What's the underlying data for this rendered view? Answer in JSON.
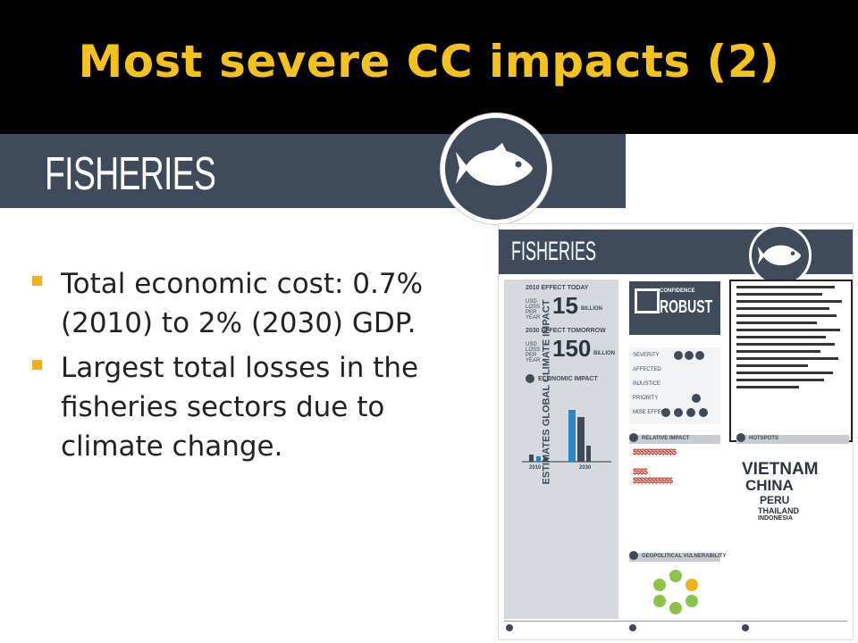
{
  "slide": {
    "title": "Most severe CC impacts (2)",
    "banner_label": "FISHERIES",
    "bullets": [
      "Total economic cost: 0.7% (2010) to 2% (2030) GDP.",
      "Largest total losses in the fisheries sectors due to climate change."
    ]
  },
  "infographic": {
    "header": "FISHERIES",
    "side_label": "ESTIMATES GLOBAL CLIMATE IMPACT",
    "effect_today_label": "2010 EFFECT TODAY",
    "effect_today_value": "15",
    "effect_today_unit": "BILLION",
    "effect_tomorrow_label": "2030 EFFECT TOMORROW",
    "effect_tomorrow_value": "150",
    "effect_tomorrow_unit": "BILLION",
    "loss_label": "USD LOSS PER YEAR",
    "economic_impact_label": "ECONOMIC IMPACT",
    "confidence_label": "CONFIDENCE",
    "confidence_value": "ROBUST",
    "severity_rows": [
      "SEVERITY",
      "AFFECTED",
      "INJUSTICE",
      "PRIORITY",
      "MISE EFFECT"
    ],
    "relative_impact_label": "RELATIVE IMPACT",
    "hotspots_label": "HOTSPOTS",
    "hotspots": [
      "VIETNAM",
      "CHINA",
      "PERU",
      "THAILAND",
      "INDONESIA"
    ],
    "geopolitical_label": "GEOPOLITICAL VULNERABILITY",
    "year_2010": "2010",
    "year_2030": "2030"
  },
  "colors": {
    "title": "#f5c21b",
    "banner": "#3f4b5b",
    "bullet_mark": "#f1b11c",
    "background": "#000000"
  }
}
